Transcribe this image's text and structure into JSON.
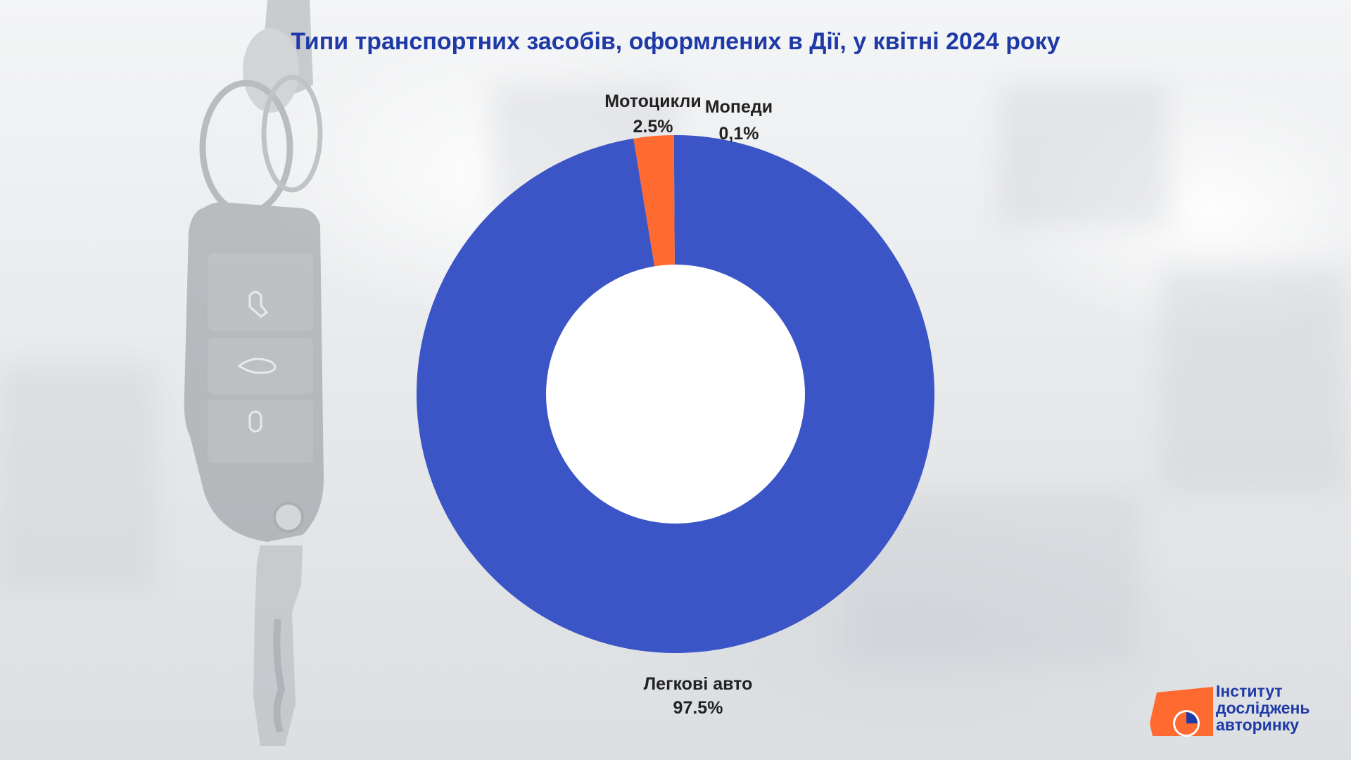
{
  "title": "Типи транспортних засобів, оформлених в Дії, у квітні 2024 року",
  "chart_data": {
    "type": "pie",
    "title": "Типи транспортних засобів, оформлених в Дії, у квітні 2024 року",
    "donut": true,
    "slices": [
      {
        "label": "Мопеди",
        "value_label": "0,1%",
        "value": 0.1,
        "color": "#3b55c6"
      },
      {
        "label": "Мотоцикли",
        "value_label": "2.5%",
        "value": 2.5,
        "color": "#ff6a30"
      },
      {
        "label": "Легкові авто",
        "value_label": "97.5%",
        "value": 97.5,
        "color": "#3b55c6"
      }
    ]
  },
  "logo": {
    "line1": "Інститут",
    "line2": "досліджень",
    "line3": "авторинку",
    "colors": {
      "primary": "#1f3aa6",
      "accent": "#ff6a30"
    }
  },
  "background": {
    "subject": "car key with remote fob"
  }
}
